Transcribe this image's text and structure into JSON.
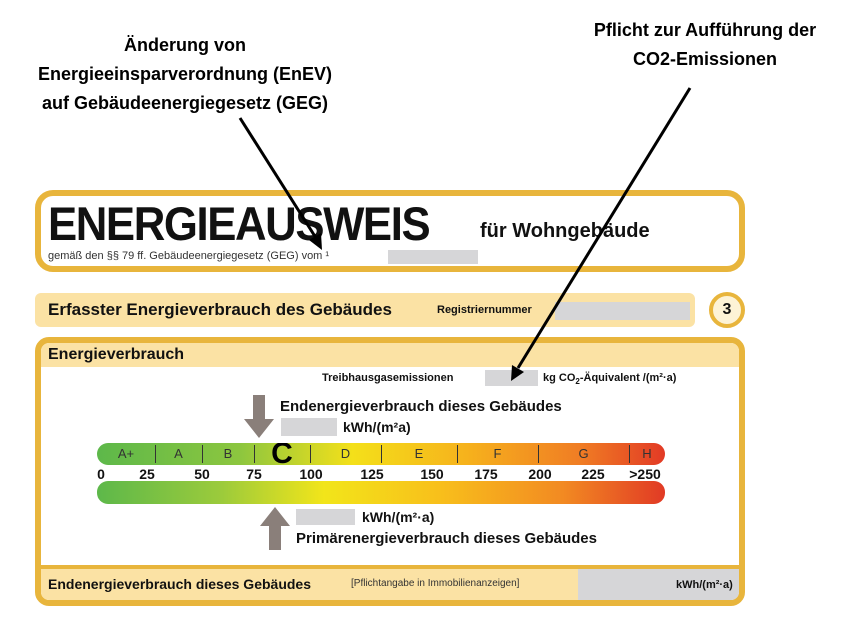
{
  "annotations": {
    "left": [
      "Änderung von",
      "Energieeinsparverordnung (EnEV)",
      "auf Gebäudeenergiegesetz (GEG)"
    ],
    "right": [
      "Pflicht zur Aufführung der",
      "CO2-Emissionen"
    ]
  },
  "header": {
    "title": "ENERGIEAUSWEIS",
    "subtitle_suffix": "für Wohngebäude",
    "legal_line": "gemäß den §§ 79 ff. Gebäudeenergiegesetz (GEG) vom ¹"
  },
  "section": {
    "title": "Erfasster Energieverbrauch des Gebäudes",
    "reg_label": "Registriernummer",
    "page_number": "3"
  },
  "energy": {
    "heading": "Energieverbrauch",
    "ghg_label": "Treibhausgasemissionen",
    "ghg_unit_pre": "kg CO",
    "ghg_unit_sub": "2",
    "ghg_unit_post": "-Äquivalent /(m²·a)",
    "end_label": "Endenergieverbrauch dieses Gebäudes",
    "unit": "kWh/(m²a)",
    "unit_primary": "kWh/(m²·a)",
    "primary_label": "Primärenergieverbrauch dieses Gebäudes",
    "classes": [
      "A+",
      "A",
      "B",
      "C",
      "D",
      "E",
      "F",
      "G",
      "H"
    ],
    "ticks": [
      "0",
      "25",
      "50",
      "75",
      "100",
      "125",
      "150",
      "175",
      "200",
      "225",
      ">250"
    ],
    "highlighted_class": "C"
  },
  "footer": {
    "label": "Endenergieverbrauch dieses Gebäudes",
    "note": "[Pflichtangabe in Immobilienanzeigen]",
    "unit": "kWh/(m²·a)"
  },
  "colors": {
    "accent": "#e8b53c",
    "band": "#fbe2a4",
    "arrow": "#8a7f7a",
    "field": "#d6d6d8"
  }
}
